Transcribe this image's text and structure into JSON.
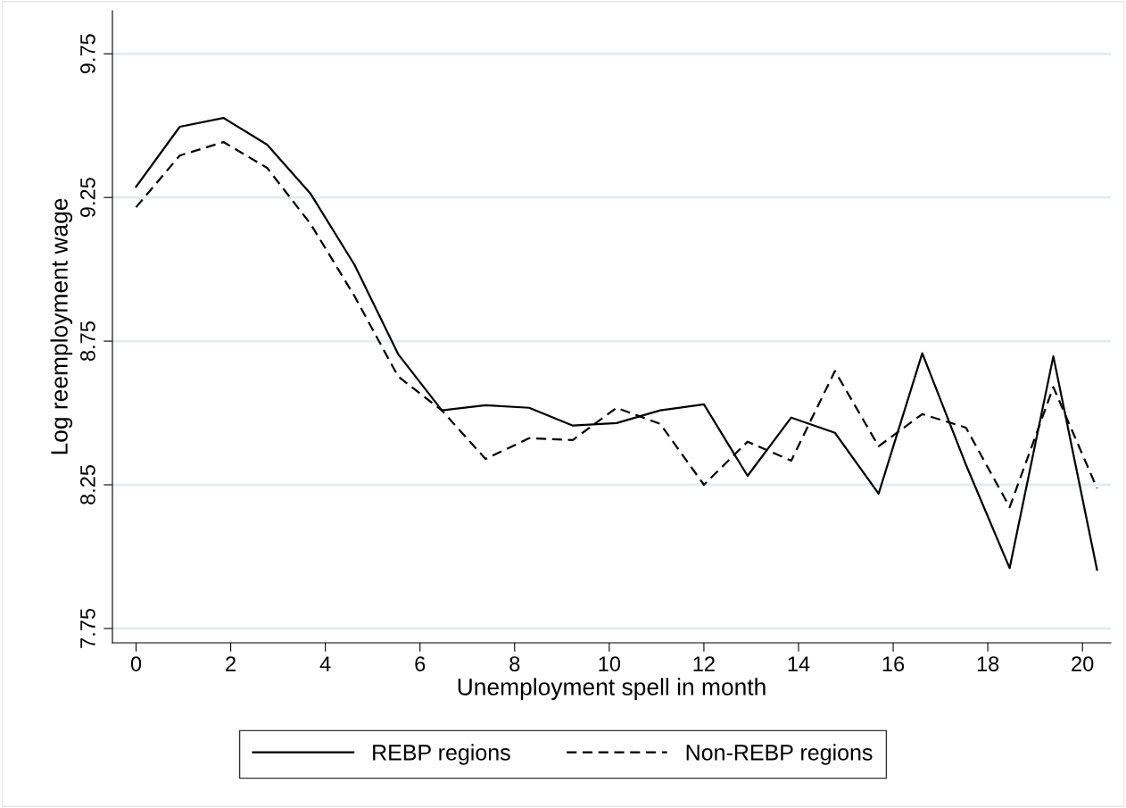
{
  "chart_data": {
    "type": "line",
    "xlabel": "Unemployment spell in month",
    "ylabel": "Log reemployment wage",
    "x": [
      0,
      0.923,
      1.846,
      2.769,
      3.692,
      4.615,
      5.538,
      6.462,
      7.385,
      8.308,
      9.231,
      10.154,
      11.077,
      12.0,
      12.923,
      13.846,
      14.769,
      15.692,
      16.615,
      17.538,
      18.462,
      19.385,
      20.308
    ],
    "series": [
      {
        "name": "REBP regions",
        "color": "#000000",
        "line_style": "solid",
        "values": [
          9.287,
          9.496,
          9.527,
          9.434,
          9.262,
          9.016,
          8.705,
          8.509,
          8.527,
          8.518,
          8.456,
          8.465,
          8.509,
          8.53,
          8.281,
          8.484,
          8.431,
          8.219,
          8.708,
          8.32,
          7.96,
          8.697,
          7.954
        ]
      },
      {
        "name": "Non-REBP regions",
        "color": "#000000",
        "line_style": "dashed",
        "values": [
          9.216,
          9.396,
          9.443,
          9.353,
          9.157,
          8.907,
          8.627,
          8.509,
          8.34,
          8.412,
          8.406,
          8.518,
          8.462,
          8.25,
          8.4,
          8.334,
          8.646,
          8.384,
          8.496,
          8.449,
          8.172,
          8.59,
          8.238
        ]
      }
    ],
    "xlim": [
      -0.5,
      20.6
    ],
    "ylim": [
      7.7,
      9.9
    ],
    "xticks": [
      0,
      2,
      4,
      6,
      8,
      10,
      12,
      14,
      16,
      18,
      20
    ],
    "yticks": [
      7.75,
      8.25,
      8.75,
      9.25,
      9.75
    ],
    "grid": "y",
    "legend": "bottom",
    "marker": "none"
  }
}
